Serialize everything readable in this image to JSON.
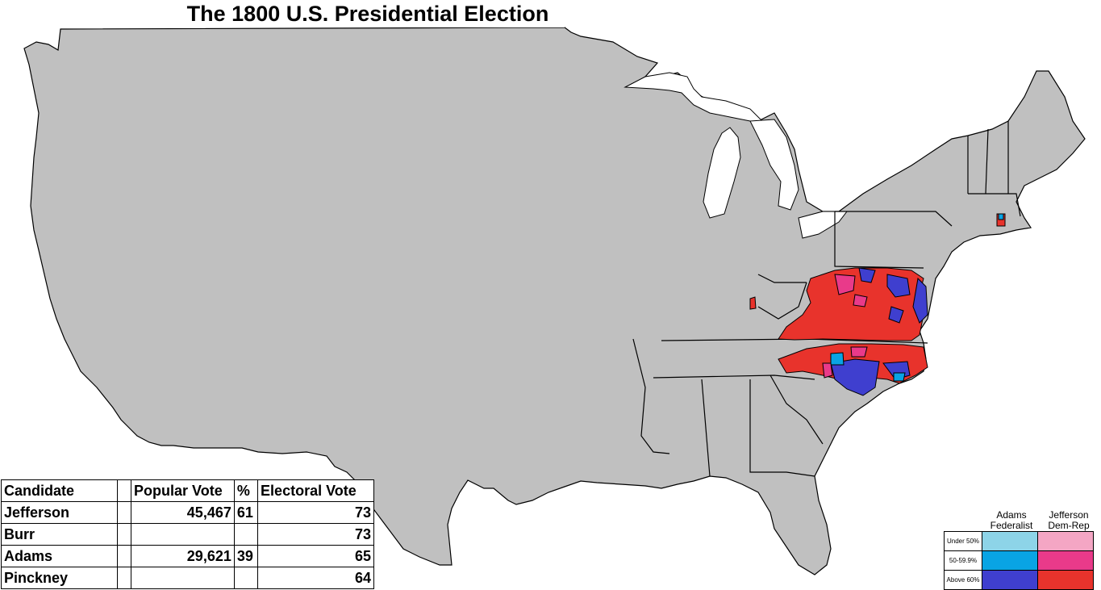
{
  "title": "The 1800 U.S. Presidential Election",
  "results": {
    "headers": [
      "Candidate",
      "",
      "Popular Vote",
      "%",
      "Electoral Vote"
    ],
    "rows": [
      {
        "candidate": "Jefferson",
        "popular": "45,467",
        "pct": "61",
        "electoral": "73"
      },
      {
        "candidate": "Burr",
        "popular": "",
        "pct": "",
        "electoral": "73"
      },
      {
        "candidate": "Adams",
        "popular": "29,621",
        "pct": "39",
        "electoral": "65"
      },
      {
        "candidate": "Pinckney",
        "popular": "",
        "pct": "",
        "electoral": "64"
      }
    ]
  },
  "legend": {
    "adams_heading": [
      "Adams",
      "Federalist"
    ],
    "jefferson_heading": [
      "Jefferson",
      "Dem-Rep"
    ],
    "rows": [
      {
        "label": "Under 50%",
        "adams_color": "#8dd4e8",
        "jefferson_color": "#f4a6c4"
      },
      {
        "label": "50-59.9%",
        "adams_color": "#09a4e4",
        "jefferson_color": "#e93a8a"
      },
      {
        "label": "Above 60%",
        "adams_color": "#3f3fcf",
        "jefferson_color": "#e8332c"
      }
    ]
  },
  "colors": {
    "land": "#c0c0c0",
    "water": "#ffffff",
    "border": "#000000"
  }
}
